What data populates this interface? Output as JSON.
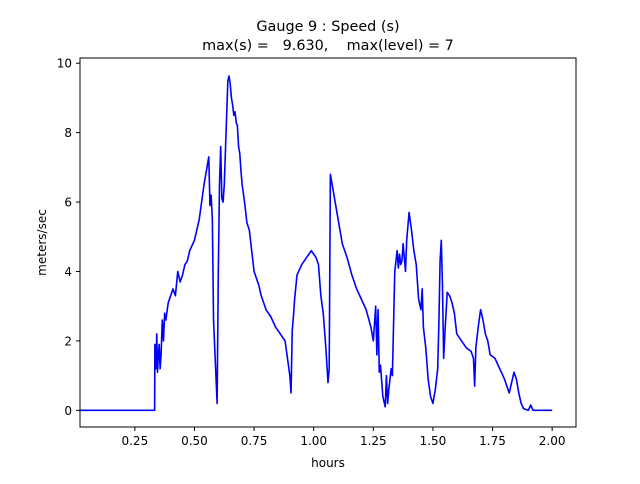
{
  "chart_data": {
    "type": "line",
    "title_line1": "Gauge 9 : Speed (s)",
    "title_line2": "max(s) =   9.630,    max(level) = 7",
    "xlabel": "hours",
    "ylabel": "meters/sec",
    "xlim": [
      0.02,
      2.1
    ],
    "ylim": [
      -0.48,
      10.15
    ],
    "x_ticks": [
      0.25,
      0.5,
      0.75,
      1.0,
      1.25,
      1.5,
      1.75,
      2.0
    ],
    "x_tick_labels": [
      "0.25",
      "0.50",
      "0.75",
      "1.00",
      "1.25",
      "1.50",
      "1.75",
      "2.00"
    ],
    "y_ticks": [
      0,
      2,
      4,
      6,
      8,
      10
    ],
    "y_tick_labels": [
      "0",
      "2",
      "4",
      "6",
      "8",
      "10"
    ],
    "grid": false,
    "series": [
      {
        "color": "#0000ff",
        "x": [
          0.02,
          0.333,
          0.334,
          0.338,
          0.342,
          0.345,
          0.348,
          0.352,
          0.356,
          0.36,
          0.365,
          0.37,
          0.375,
          0.38,
          0.39,
          0.395,
          0.4,
          0.405,
          0.41,
          0.42,
          0.43,
          0.44,
          0.45,
          0.46,
          0.47,
          0.48,
          0.5,
          0.52,
          0.54,
          0.56,
          0.565,
          0.57,
          0.575,
          0.58,
          0.59,
          0.595,
          0.6,
          0.605,
          0.61,
          0.615,
          0.62,
          0.625,
          0.63,
          0.64,
          0.645,
          0.65,
          0.655,
          0.66,
          0.665,
          0.67,
          0.675,
          0.68,
          0.685,
          0.69,
          0.695,
          0.7,
          0.71,
          0.72,
          0.73,
          0.74,
          0.75,
          0.76,
          0.77,
          0.78,
          0.8,
          0.82,
          0.84,
          0.86,
          0.88,
          0.9,
          0.905,
          0.91,
          0.915,
          0.92,
          0.93,
          0.95,
          0.97,
          0.99,
          1.0,
          1.01,
          1.02,
          1.03,
          1.04,
          1.05,
          1.06,
          1.065,
          1.07,
          1.075,
          1.08,
          1.09,
          1.1,
          1.12,
          1.14,
          1.16,
          1.18,
          1.2,
          1.22,
          1.24,
          1.25,
          1.26,
          1.265,
          1.27,
          1.275,
          1.28,
          1.29,
          1.3,
          1.305,
          1.31,
          1.315,
          1.32,
          1.325,
          1.33,
          1.34,
          1.35,
          1.355,
          1.36,
          1.365,
          1.37,
          1.375,
          1.38,
          1.385,
          1.39,
          1.4,
          1.41,
          1.42,
          1.43,
          1.44,
          1.45,
          1.455,
          1.46,
          1.47,
          1.48,
          1.49,
          1.5,
          1.51,
          1.52,
          1.525,
          1.53,
          1.535,
          1.54,
          1.545,
          1.55,
          1.56,
          1.57,
          1.58,
          1.59,
          1.6,
          1.62,
          1.64,
          1.66,
          1.67,
          1.675,
          1.68,
          1.69,
          1.7,
          1.71,
          1.72,
          1.73,
          1.74,
          1.76,
          1.78,
          1.8,
          1.82,
          1.83,
          1.84,
          1.85,
          1.86,
          1.87,
          1.88,
          1.9,
          1.91,
          1.92,
          1.95,
          2.0
        ],
        "y": [
          0.0,
          0.0,
          1.9,
          1.2,
          2.2,
          1.1,
          1.5,
          1.9,
          1.2,
          1.6,
          2.6,
          2.0,
          2.8,
          2.6,
          3.1,
          3.2,
          3.3,
          3.4,
          3.5,
          3.3,
          4.0,
          3.7,
          3.9,
          4.2,
          4.3,
          4.6,
          4.9,
          5.5,
          6.5,
          7.3,
          5.9,
          6.2,
          5.5,
          2.6,
          1.0,
          0.2,
          4.0,
          6.5,
          7.6,
          6.1,
          6.0,
          6.5,
          7.5,
          9.5,
          9.63,
          9.4,
          9.0,
          8.8,
          8.5,
          8.6,
          8.3,
          8.2,
          7.6,
          7.4,
          6.9,
          6.5,
          6.0,
          5.4,
          5.2,
          4.6,
          4.0,
          3.8,
          3.6,
          3.3,
          2.9,
          2.7,
          2.4,
          2.2,
          2.0,
          1.0,
          0.5,
          2.3,
          2.7,
          3.2,
          3.9,
          4.2,
          4.4,
          4.6,
          4.5,
          4.4,
          4.2,
          3.3,
          2.8,
          1.9,
          0.8,
          1.2,
          6.8,
          6.6,
          6.4,
          6.0,
          5.6,
          4.8,
          4.4,
          3.9,
          3.5,
          3.2,
          2.9,
          2.4,
          2.0,
          3.0,
          1.6,
          2.9,
          1.1,
          1.3,
          0.4,
          0.1,
          1.0,
          0.2,
          0.6,
          0.9,
          1.2,
          1.0,
          4.0,
          4.6,
          4.1,
          4.5,
          4.2,
          4.3,
          4.8,
          4.4,
          4.0,
          4.9,
          5.7,
          5.2,
          4.6,
          4.2,
          3.2,
          2.9,
          3.5,
          2.4,
          1.8,
          0.9,
          0.4,
          0.2,
          0.6,
          1.2,
          2.5,
          4.3,
          4.9,
          3.6,
          1.5,
          2.2,
          3.4,
          3.3,
          3.1,
          2.8,
          2.2,
          2.0,
          1.8,
          1.7,
          1.5,
          0.7,
          1.8,
          2.4,
          2.9,
          2.6,
          2.2,
          2.0,
          1.6,
          1.5,
          1.2,
          0.9,
          0.5,
          0.8,
          1.1,
          0.9,
          0.5,
          0.2,
          0.05,
          0.0,
          0.15,
          0.0,
          0.0,
          0.0
        ]
      }
    ]
  }
}
